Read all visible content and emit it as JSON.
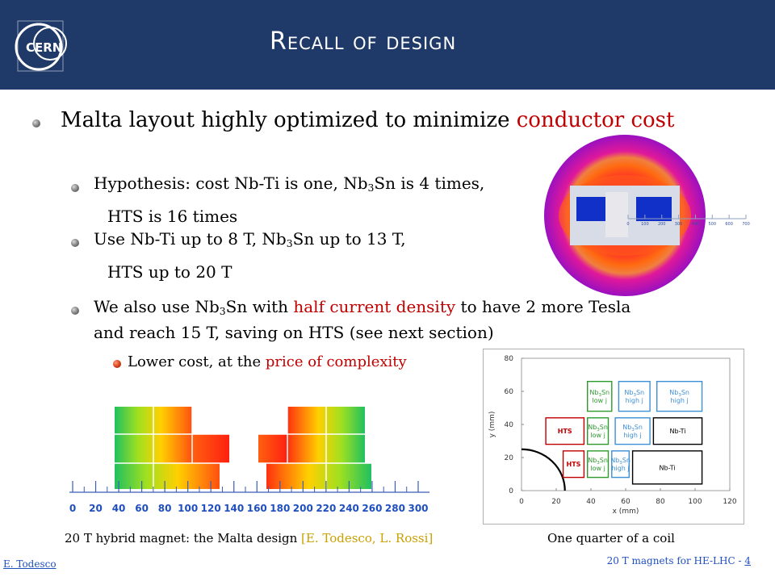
{
  "header": {
    "title": "Recall of design",
    "logo_text": "CERN"
  },
  "bullets": {
    "main": {
      "text_a": "Malta layout highly optimized to minimize ",
      "text_b": "conductor cost"
    },
    "hypothesis": {
      "a": "Hypothesis: cost Nb-Ti is one, Nb",
      "sub": "3",
      "b": "Sn is 4 times,",
      "cont": "HTS is 16 times"
    },
    "use": {
      "a": "Use Nb-Ti up to 8 T, Nb",
      "sub": "3",
      "b": "Sn up to 13 T,",
      "cont": "HTS up to 20 T"
    },
    "also": {
      "a": "We also use Nb",
      "sub": "3",
      "b": "Sn with ",
      "hl": "half current density",
      "c": " to have 2 more Tesla",
      "line2": "and reach 15 T, saving on HTS (see next section)"
    },
    "lower": {
      "a": "Lower cost, at the ",
      "hl": "price of complexity"
    }
  },
  "magnet_figure": {
    "x_ticks": [
      "0",
      "20",
      "40",
      "60",
      "80",
      "100",
      "120",
      "140",
      "160",
      "180",
      "200",
      "220",
      "240",
      "260",
      "280",
      "300"
    ],
    "caption_a": "20 T hybrid magnet: the Malta design ",
    "caption_hl": "[E. Todesco, L. Rossi]"
  },
  "circle_figure": {
    "scale_ticks": [
      "0",
      "100",
      "200",
      "300",
      "400",
      "500",
      "600",
      "700"
    ]
  },
  "chart_data": {
    "type": "diagram",
    "title": "",
    "xlabel": "x (mm)",
    "ylabel": "y (mm)",
    "xlim": [
      0,
      120
    ],
    "ylim": [
      0,
      80
    ],
    "x_ticks": [
      "0",
      "20",
      "40",
      "60",
      "80",
      "100",
      "120"
    ],
    "y_ticks": [
      "0",
      "20",
      "40",
      "60",
      "80"
    ],
    "blocks": [
      {
        "label": "HTS",
        "material": "HTS",
        "x0": 24,
        "x1": 36,
        "y0": 8,
        "y1": 24,
        "color": "#c00000"
      },
      {
        "label": "HTS",
        "material": "HTS",
        "x0": 14,
        "x1": 36,
        "y0": 28,
        "y1": 44,
        "color": "#c00000"
      },
      {
        "label": "Nb3Sn low j",
        "material": "Nb",
        "sub": "3",
        "suffix": "Sn",
        "line2": "low j",
        "x0": 38,
        "x1": 50,
        "y0": 8,
        "y1": 24,
        "color": "#2e9a2e"
      },
      {
        "label": "Nb3Sn low j",
        "material": "Nb",
        "sub": "3",
        "suffix": "Sn",
        "line2": "low j",
        "x0": 38,
        "x1": 50,
        "y0": 28,
        "y1": 44,
        "color": "#2e9a2e"
      },
      {
        "label": "Nb3Sn low j",
        "material": "Nb",
        "sub": "3",
        "suffix": "Sn",
        "line2": "low j",
        "x0": 38,
        "x1": 52,
        "y0": 48,
        "y1": 66,
        "color": "#2e9a2e"
      },
      {
        "label": "Nb3Sn high j",
        "material": "Nb",
        "sub": "3",
        "suffix": "Sn",
        "line2": "high j",
        "x0": 52,
        "x1": 62,
        "y0": 8,
        "y1": 24,
        "color": "#3d8fd6"
      },
      {
        "label": "Nb3Sn high j",
        "material": "Nb",
        "sub": "3",
        "suffix": "Sn",
        "line2": "high j",
        "x0": 54,
        "x1": 74,
        "y0": 28,
        "y1": 44,
        "color": "#3d8fd6"
      },
      {
        "label": "Nb3Sn high j",
        "material": "Nb",
        "sub": "3",
        "suffix": "Sn",
        "line2": "high j",
        "x0": 56,
        "x1": 74,
        "y0": 48,
        "y1": 66,
        "color": "#3d8fd6"
      },
      {
        "label": "Nb3Sn high j",
        "material": "Nb",
        "sub": "3",
        "suffix": "Sn",
        "line2": "high j",
        "x0": 78,
        "x1": 104,
        "y0": 48,
        "y1": 66,
        "color": "#3d8fd6"
      },
      {
        "label": "Nb-Ti",
        "material": "Nb-Ti",
        "x0": 76,
        "x1": 104,
        "y0": 28,
        "y1": 44,
        "color": "#000000"
      },
      {
        "label": "Nb-Ti",
        "material": "Nb-Ti",
        "x0": 64,
        "x1": 104,
        "y0": 4,
        "y1": 24,
        "color": "#000000"
      }
    ],
    "aperture_radius": 25,
    "caption": "One quarter of a coil"
  },
  "footer": {
    "author": "E. Todesco",
    "talk": "20 T magnets for HE-LHC - ",
    "page": "4"
  }
}
